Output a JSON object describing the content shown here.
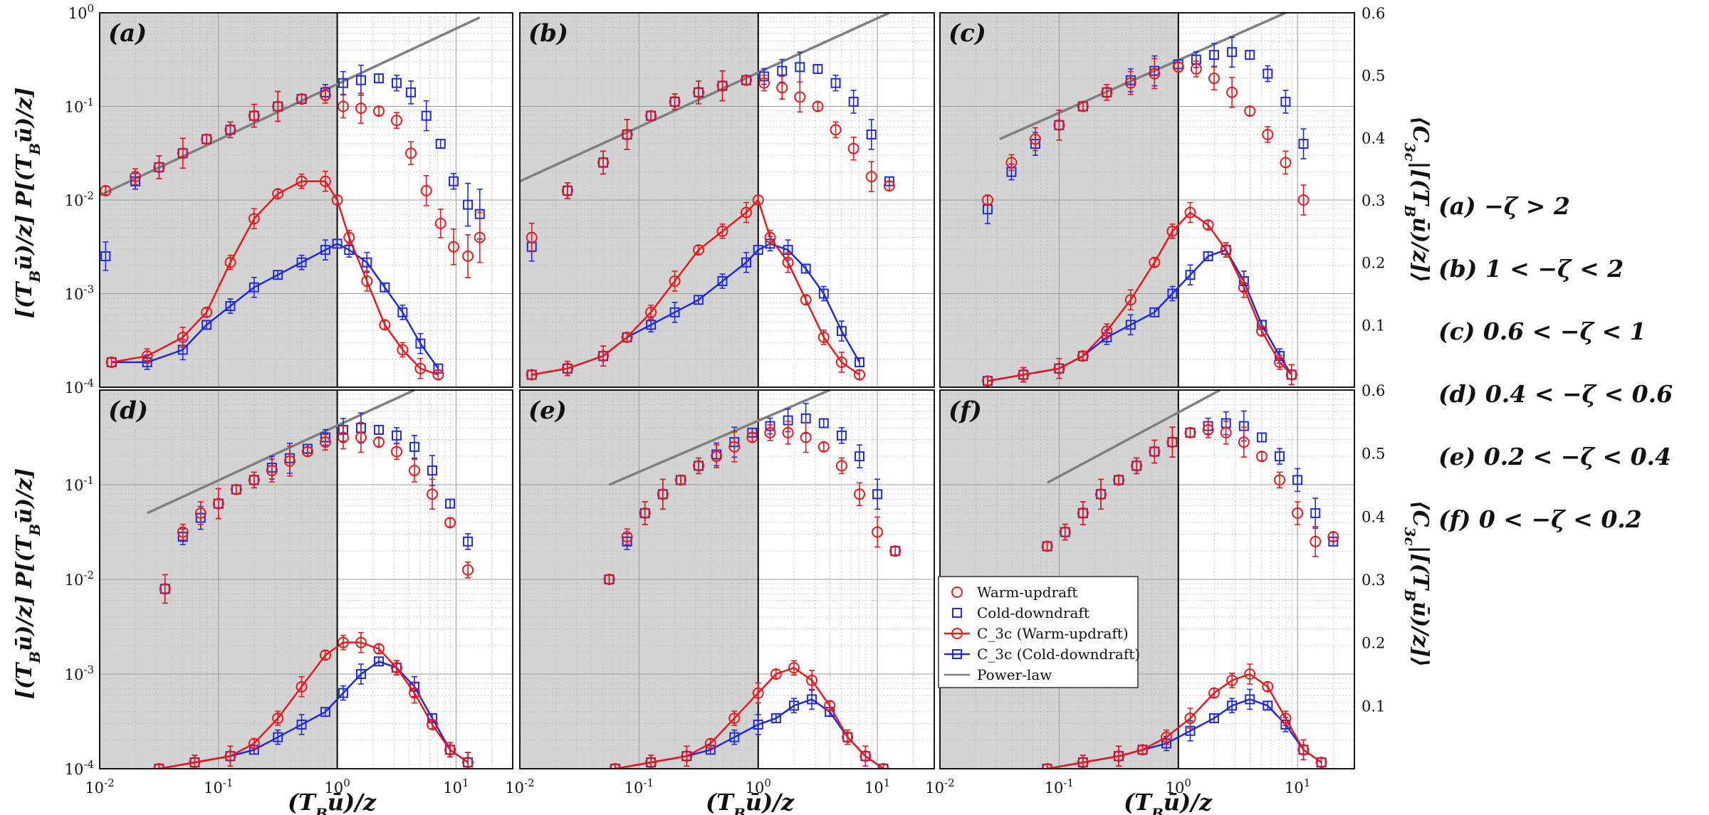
{
  "figure": {
    "ylabel_left": "[(T_B ū)/z] P[(T_B ū)/z]",
    "ylabel_right": "⟨C_3c|[(T_B ū)/z]⟩",
    "xlabel": "(T_B ū)/z"
  },
  "captions": [
    {
      "tag": "(a)",
      "text": "−ζ > 2"
    },
    {
      "tag": "(b)",
      "text": "1 < −ζ < 2"
    },
    {
      "tag": "(c)",
      "text": "0.6 < −ζ < 1"
    },
    {
      "tag": "(d)",
      "text": "0.4 < −ζ < 0.6"
    },
    {
      "tag": "(e)",
      "text": "0.2 < −ζ < 0.4"
    },
    {
      "tag": "(f)",
      "text": "0 < −ζ < 0.2"
    }
  ],
  "legend": [
    {
      "label": "Warm-updraft",
      "color": "#e41a1c",
      "marker": "circle",
      "line": false
    },
    {
      "label": "Cold-downdraft",
      "color": "#1f2bd6",
      "marker": "square",
      "line": false
    },
    {
      "label": "C_3c (Warm-updraft)",
      "color": "#e41a1c",
      "marker": "circle",
      "line": true
    },
    {
      "label": "C_3c (Cold-downdraft)",
      "color": "#1f2bd6",
      "marker": "square",
      "line": true
    },
    {
      "label": "Power-law",
      "color": "#808080",
      "marker": "none",
      "line": true
    }
  ],
  "chart_data": [
    {
      "panel": "(a)",
      "type": "scatter",
      "xlim": [
        0.01,
        30
      ],
      "ylim_left": [
        0.0001,
        1
      ],
      "ylim_right": [
        0,
        0.6
      ],
      "x_scale": "log",
      "y_left_scale": "log",
      "pdf_warm": {
        "xlog": [
          -1.95,
          -1.7,
          -1.5,
          -1.3,
          -1.1,
          -0.9,
          -0.7,
          -0.5,
          -0.3,
          -0.1,
          0.05,
          0.2,
          0.35,
          0.5,
          0.62,
          0.75,
          0.87,
          0.98,
          1.1,
          1.2
        ],
        "ylog": [
          -1.9,
          -1.75,
          -1.65,
          -1.5,
          -1.35,
          -1.25,
          -1.1,
          -1.0,
          -0.92,
          -0.88,
          -1.0,
          -1.02,
          -1.05,
          -1.15,
          -1.5,
          -1.9,
          -2.25,
          -2.5,
          -2.6,
          -2.4
        ]
      },
      "pdf_cold": {
        "xlog": [
          -1.95,
          -1.7,
          -1.5,
          -1.3,
          -1.1,
          -0.9,
          -0.7,
          -0.5,
          -0.3,
          -0.1,
          0.05,
          0.2,
          0.35,
          0.5,
          0.62,
          0.75,
          0.87,
          0.98,
          1.1,
          1.2
        ],
        "ylog": [
          -2.6,
          -1.8,
          -1.65,
          -1.5,
          -1.35,
          -1.25,
          -1.1,
          -1.0,
          -0.92,
          -0.85,
          -0.75,
          -0.72,
          -0.7,
          -0.75,
          -0.85,
          -1.1,
          -1.4,
          -1.8,
          -2.05,
          -2.15
        ]
      },
      "c3c_warm": {
        "xlog": [
          -1.9,
          -1.6,
          -1.3,
          -1.1,
          -0.9,
          -0.7,
          -0.5,
          -0.3,
          -0.1,
          0.0,
          0.1,
          0.25,
          0.4,
          0.55,
          0.7,
          0.85
        ],
        "y": [
          0.04,
          0.05,
          0.08,
          0.12,
          0.2,
          0.27,
          0.31,
          0.33,
          0.33,
          0.3,
          0.24,
          0.17,
          0.1,
          0.06,
          0.03,
          0.02
        ]
      },
      "c3c_cold": {
        "xlog": [
          -1.9,
          -1.6,
          -1.3,
          -1.1,
          -0.9,
          -0.7,
          -0.5,
          -0.3,
          -0.1,
          0.0,
          0.1,
          0.25,
          0.4,
          0.55,
          0.7,
          0.85
        ],
        "y": [
          0.04,
          0.04,
          0.06,
          0.1,
          0.13,
          0.16,
          0.18,
          0.2,
          0.22,
          0.23,
          0.22,
          0.2,
          0.16,
          0.12,
          0.07,
          0.03
        ]
      },
      "powerlaw": {
        "xlog": [
          -2.0,
          1.2
        ],
        "ylog": [
          -1.95,
          -0.05
        ]
      }
    },
    {
      "panel": "(b)",
      "type": "scatter",
      "pdf_warm": {
        "xlog": [
          -1.9,
          -1.6,
          -1.3,
          -1.1,
          -0.9,
          -0.7,
          -0.5,
          -0.3,
          -0.1,
          0.05,
          0.2,
          0.35,
          0.5,
          0.65,
          0.8,
          0.95,
          1.1
        ],
        "ylog": [
          -2.4,
          -1.9,
          -1.6,
          -1.3,
          -1.1,
          -0.95,
          -0.85,
          -0.78,
          -0.72,
          -0.75,
          -0.8,
          -0.9,
          -1.0,
          -1.25,
          -1.45,
          -1.75,
          -1.85
        ]
      },
      "pdf_cold": {
        "xlog": [
          -1.9,
          -1.6,
          -1.3,
          -1.1,
          -0.9,
          -0.7,
          -0.5,
          -0.3,
          -0.1,
          0.05,
          0.2,
          0.35,
          0.5,
          0.65,
          0.8,
          0.95,
          1.1
        ],
        "ylog": [
          -2.5,
          -1.9,
          -1.6,
          -1.3,
          -1.1,
          -0.95,
          -0.85,
          -0.78,
          -0.72,
          -0.68,
          -0.62,
          -0.58,
          -0.6,
          -0.75,
          -0.95,
          -1.3,
          -1.8
        ]
      },
      "c3c_warm": {
        "xlog": [
          -1.9,
          -1.6,
          -1.3,
          -1.1,
          -0.9,
          -0.7,
          -0.5,
          -0.3,
          -0.1,
          0.0,
          0.1,
          0.25,
          0.4,
          0.55,
          0.7,
          0.85
        ],
        "y": [
          0.02,
          0.03,
          0.05,
          0.08,
          0.12,
          0.17,
          0.22,
          0.25,
          0.28,
          0.3,
          0.24,
          0.2,
          0.14,
          0.08,
          0.04,
          0.02
        ]
      },
      "c3c_cold": {
        "xlog": [
          -1.9,
          -1.6,
          -1.3,
          -1.1,
          -0.9,
          -0.7,
          -0.5,
          -0.3,
          -0.1,
          0.0,
          0.1,
          0.25,
          0.4,
          0.55,
          0.7,
          0.85
        ],
        "y": [
          0.02,
          0.03,
          0.05,
          0.08,
          0.1,
          0.12,
          0.14,
          0.17,
          0.2,
          0.22,
          0.23,
          0.22,
          0.19,
          0.15,
          0.09,
          0.04
        ]
      },
      "powerlaw": {
        "xlog": [
          -2.0,
          1.1
        ],
        "ylog": [
          -1.8,
          0.0
        ]
      }
    },
    {
      "panel": "(c)",
      "type": "scatter",
      "pdf_warm": {
        "xlog": [
          -1.6,
          -1.4,
          -1.2,
          -1.0,
          -0.8,
          -0.6,
          -0.4,
          -0.2,
          0.0,
          0.15,
          0.3,
          0.45,
          0.6,
          0.75,
          0.9,
          1.05
        ],
        "ylog": [
          -2.0,
          -1.6,
          -1.35,
          -1.2,
          -1.0,
          -0.85,
          -0.75,
          -0.65,
          -0.58,
          -0.6,
          -0.7,
          -0.85,
          -1.05,
          -1.3,
          -1.6,
          -2.0
        ]
      },
      "pdf_cold": {
        "xlog": [
          -1.6,
          -1.4,
          -1.2,
          -1.0,
          -0.8,
          -0.6,
          -0.4,
          -0.2,
          0.0,
          0.15,
          0.3,
          0.45,
          0.6,
          0.75,
          0.9,
          1.05
        ],
        "ylog": [
          -2.1,
          -1.7,
          -1.4,
          -1.2,
          -1.0,
          -0.85,
          -0.72,
          -0.62,
          -0.55,
          -0.5,
          -0.45,
          -0.42,
          -0.45,
          -0.65,
          -0.95,
          -1.4
        ]
      },
      "c3c_warm": {
        "xlog": [
          -1.6,
          -1.3,
          -1.0,
          -0.8,
          -0.6,
          -0.4,
          -0.2,
          -0.05,
          0.1,
          0.25,
          0.4,
          0.55,
          0.7,
          0.85,
          0.95
        ],
        "y": [
          0.01,
          0.02,
          0.03,
          0.05,
          0.09,
          0.14,
          0.2,
          0.25,
          0.28,
          0.26,
          0.22,
          0.16,
          0.09,
          0.04,
          0.02
        ]
      },
      "c3c_cold": {
        "xlog": [
          -1.6,
          -1.3,
          -1.0,
          -0.8,
          -0.6,
          -0.4,
          -0.2,
          -0.05,
          0.1,
          0.25,
          0.4,
          0.55,
          0.7,
          0.85,
          0.95
        ],
        "y": [
          0.01,
          0.02,
          0.03,
          0.05,
          0.08,
          0.1,
          0.12,
          0.15,
          0.18,
          0.21,
          0.22,
          0.17,
          0.1,
          0.05,
          0.02
        ]
      },
      "powerlaw": {
        "xlog": [
          -1.5,
          0.9
        ],
        "ylog": [
          -1.35,
          0.0
        ]
      }
    },
    {
      "panel": "(d)",
      "type": "scatter",
      "pdf_warm": {
        "xlog": [
          -1.45,
          -1.3,
          -1.15,
          -1.0,
          -0.85,
          -0.7,
          -0.55,
          -0.4,
          -0.25,
          -0.1,
          0.05,
          0.2,
          0.35,
          0.5,
          0.65,
          0.8,
          0.95,
          1.1
        ],
        "ylog": [
          -2.1,
          -1.5,
          -1.3,
          -1.2,
          -1.05,
          -0.95,
          -0.85,
          -0.75,
          -0.65,
          -0.55,
          -0.5,
          -0.5,
          -0.55,
          -0.65,
          -0.85,
          -1.1,
          -1.4,
          -1.9
        ]
      },
      "pdf_cold": {
        "xlog": [
          -1.45,
          -1.3,
          -1.15,
          -1.0,
          -0.85,
          -0.7,
          -0.55,
          -0.4,
          -0.25,
          -0.1,
          0.05,
          0.2,
          0.35,
          0.5,
          0.65,
          0.8,
          0.95,
          1.1
        ],
        "ylog": [
          -2.1,
          -1.55,
          -1.35,
          -1.2,
          -1.05,
          -0.95,
          -0.82,
          -0.72,
          -0.62,
          -0.5,
          -0.42,
          -0.4,
          -0.42,
          -0.48,
          -0.6,
          -0.85,
          -1.2,
          -1.6
        ]
      },
      "c3c_warm": {
        "xlog": [
          -1.5,
          -1.2,
          -0.9,
          -0.7,
          -0.5,
          -0.3,
          -0.1,
          0.05,
          0.2,
          0.35,
          0.5,
          0.65,
          0.8,
          0.95,
          1.1
        ],
        "y": [
          0.0,
          0.01,
          0.02,
          0.04,
          0.08,
          0.13,
          0.18,
          0.2,
          0.2,
          0.19,
          0.16,
          0.12,
          0.07,
          0.03,
          0.01
        ]
      },
      "c3c_cold": {
        "xlog": [
          -1.5,
          -1.2,
          -0.9,
          -0.7,
          -0.5,
          -0.3,
          -0.1,
          0.05,
          0.2,
          0.35,
          0.5,
          0.65,
          0.8,
          0.95,
          1.1
        ],
        "y": [
          0.0,
          0.01,
          0.02,
          0.03,
          0.05,
          0.07,
          0.09,
          0.12,
          0.15,
          0.17,
          0.16,
          0.13,
          0.08,
          0.03,
          0.01
        ]
      },
      "powerlaw": {
        "xlog": [
          -1.6,
          0.65
        ],
        "ylog": [
          -1.3,
          0.0
        ]
      }
    },
    {
      "panel": "(e)",
      "type": "scatter",
      "pdf_warm": {
        "xlog": [
          -1.25,
          -1.1,
          -0.95,
          -0.8,
          -0.65,
          -0.5,
          -0.35,
          -0.2,
          -0.05,
          0.1,
          0.25,
          0.4,
          0.55,
          0.7,
          0.85,
          1.0,
          1.15
        ],
        "ylog": [
          -2.0,
          -1.55,
          -1.3,
          -1.1,
          -0.95,
          -0.8,
          -0.7,
          -0.6,
          -0.5,
          -0.45,
          -0.45,
          -0.5,
          -0.6,
          -0.8,
          -1.1,
          -1.5,
          -1.7
        ]
      },
      "pdf_cold": {
        "xlog": [
          -1.25,
          -1.1,
          -0.95,
          -0.8,
          -0.65,
          -0.5,
          -0.35,
          -0.2,
          -0.05,
          0.1,
          0.25,
          0.4,
          0.55,
          0.7,
          0.85,
          1.0,
          1.15
        ],
        "ylog": [
          -2.0,
          -1.6,
          -1.3,
          -1.1,
          -0.95,
          -0.8,
          -0.68,
          -0.55,
          -0.45,
          -0.38,
          -0.32,
          -0.3,
          -0.35,
          -0.48,
          -0.7,
          -1.1,
          -1.7
        ]
      },
      "c3c_warm": {
        "xlog": [
          -1.2,
          -0.9,
          -0.6,
          -0.4,
          -0.2,
          0.0,
          0.15,
          0.3,
          0.45,
          0.6,
          0.75,
          0.9,
          1.05
        ],
        "y": [
          0.0,
          0.01,
          0.02,
          0.04,
          0.08,
          0.12,
          0.15,
          0.16,
          0.14,
          0.1,
          0.05,
          0.02,
          0.0
        ]
      },
      "c3c_cold": {
        "xlog": [
          -1.2,
          -0.9,
          -0.6,
          -0.4,
          -0.2,
          0.0,
          0.15,
          0.3,
          0.45,
          0.6,
          0.75,
          0.9,
          1.05
        ],
        "y": [
          0.0,
          0.01,
          0.02,
          0.03,
          0.05,
          0.07,
          0.08,
          0.1,
          0.11,
          0.09,
          0.05,
          0.02,
          0.0
        ]
      },
      "powerlaw": {
        "xlog": [
          -1.25,
          0.6
        ],
        "ylog": [
          -1.0,
          0.0
        ]
      }
    },
    {
      "panel": "(f)",
      "type": "scatter",
      "pdf_warm": {
        "xlog": [
          -1.1,
          -0.95,
          -0.8,
          -0.65,
          -0.5,
          -0.35,
          -0.2,
          -0.05,
          0.1,
          0.25,
          0.4,
          0.55,
          0.7,
          0.85,
          1.0,
          1.15,
          1.3
        ],
        "ylog": [
          -1.65,
          -1.5,
          -1.3,
          -1.1,
          -0.95,
          -0.8,
          -0.65,
          -0.55,
          -0.45,
          -0.42,
          -0.45,
          -0.55,
          -0.7,
          -0.95,
          -1.3,
          -1.6,
          -1.55
        ]
      },
      "pdf_cold": {
        "xlog": [
          -1.1,
          -0.95,
          -0.8,
          -0.65,
          -0.5,
          -0.35,
          -0.2,
          -0.05,
          0.1,
          0.25,
          0.4,
          0.55,
          0.7,
          0.85,
          1.0,
          1.15,
          1.3
        ],
        "ylog": [
          -1.65,
          -1.5,
          -1.3,
          -1.1,
          -0.95,
          -0.8,
          -0.65,
          -0.55,
          -0.45,
          -0.38,
          -0.35,
          -0.38,
          -0.5,
          -0.7,
          -0.95,
          -1.3,
          -1.6
        ]
      },
      "c3c_warm": {
        "xlog": [
          -1.1,
          -0.8,
          -0.5,
          -0.3,
          -0.1,
          0.1,
          0.3,
          0.45,
          0.6,
          0.75,
          0.9,
          1.05,
          1.2
        ],
        "y": [
          0.0,
          0.01,
          0.02,
          0.03,
          0.05,
          0.08,
          0.12,
          0.14,
          0.15,
          0.13,
          0.08,
          0.03,
          0.01
        ]
      },
      "c3c_cold": {
        "xlog": [
          -1.1,
          -0.8,
          -0.5,
          -0.3,
          -0.1,
          0.1,
          0.3,
          0.45,
          0.6,
          0.75,
          0.9,
          1.05,
          1.2
        ],
        "y": [
          0.0,
          0.01,
          0.02,
          0.03,
          0.04,
          0.06,
          0.08,
          0.1,
          0.11,
          0.1,
          0.07,
          0.03,
          0.01
        ]
      },
      "powerlaw": {
        "xlog": [
          -1.1,
          0.35
        ],
        "ylog": [
          -0.98,
          0.0
        ]
      }
    }
  ]
}
